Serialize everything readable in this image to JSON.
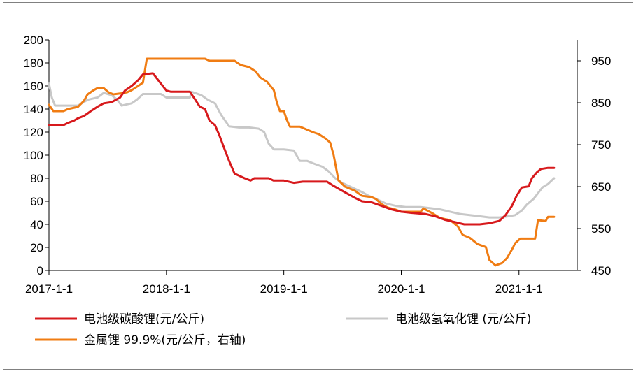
{
  "chart_data": {
    "type": "line",
    "title": "",
    "x_axis": {
      "type": "date",
      "range": [
        "2017-01-01",
        "2021-07-01"
      ],
      "tick_labels": [
        "2017-1-1",
        "2018-1-1",
        "2019-1-1",
        "2020-1-1",
        "2021-1-1"
      ]
    },
    "y_left": {
      "range": [
        0,
        200
      ],
      "ticks": [
        0,
        20,
        40,
        60,
        80,
        100,
        120,
        140,
        160,
        180,
        200
      ]
    },
    "y_right": {
      "range": [
        450,
        1000
      ],
      "ticks": [
        450,
        550,
        650,
        750,
        850,
        950
      ]
    },
    "series": [
      {
        "name": "电池级碳酸锂(元/公斤)",
        "axis": "left",
        "color": "#d7191c",
        "points": [
          [
            "2017-01-01",
            126
          ],
          [
            "2017-02-15",
            126
          ],
          [
            "2017-03-01",
            128
          ],
          [
            "2017-03-20",
            130
          ],
          [
            "2017-04-01",
            132
          ],
          [
            "2017-04-20",
            134
          ],
          [
            "2017-05-10",
            138
          ],
          [
            "2017-06-01",
            142
          ],
          [
            "2017-06-20",
            145
          ],
          [
            "2017-07-15",
            146
          ],
          [
            "2017-08-10",
            150
          ],
          [
            "2017-08-25",
            156
          ],
          [
            "2017-09-15",
            160
          ],
          [
            "2017-10-05",
            165
          ],
          [
            "2017-10-20",
            170
          ],
          [
            "2017-11-20",
            171
          ],
          [
            "2017-12-15",
            162
          ],
          [
            "2018-01-01",
            156
          ],
          [
            "2018-01-15",
            155
          ],
          [
            "2018-03-15",
            155
          ],
          [
            "2018-04-01",
            148
          ],
          [
            "2018-04-15",
            142
          ],
          [
            "2018-05-01",
            140
          ],
          [
            "2018-05-15",
            130
          ],
          [
            "2018-06-01",
            126
          ],
          [
            "2018-06-15",
            117
          ],
          [
            "2018-07-01",
            105
          ],
          [
            "2018-07-15",
            95
          ],
          [
            "2018-08-01",
            84
          ],
          [
            "2018-09-01",
            80
          ],
          [
            "2018-09-20",
            78
          ],
          [
            "2018-10-01",
            80
          ],
          [
            "2018-11-15",
            80
          ],
          [
            "2018-11-30",
            78
          ],
          [
            "2019-01-01",
            78
          ],
          [
            "2019-02-01",
            76
          ],
          [
            "2019-03-01",
            77
          ],
          [
            "2019-04-01",
            77
          ],
          [
            "2019-05-15",
            77
          ],
          [
            "2019-06-01",
            74
          ],
          [
            "2019-06-20",
            71
          ],
          [
            "2019-07-15",
            67
          ],
          [
            "2019-08-10",
            63
          ],
          [
            "2019-09-01",
            60
          ],
          [
            "2019-10-01",
            59
          ],
          [
            "2019-11-01",
            56
          ],
          [
            "2019-12-01",
            53
          ],
          [
            "2020-01-01",
            51
          ],
          [
            "2020-02-01",
            50
          ],
          [
            "2020-03-15",
            49
          ],
          [
            "2020-04-15",
            47
          ],
          [
            "2020-05-15",
            44
          ],
          [
            "2020-06-15",
            42
          ],
          [
            "2020-07-15",
            40
          ],
          [
            "2020-09-01",
            40
          ],
          [
            "2020-10-01",
            41
          ],
          [
            "2020-11-01",
            43
          ],
          [
            "2020-11-20",
            48
          ],
          [
            "2020-12-10",
            56
          ],
          [
            "2020-12-25",
            65
          ],
          [
            "2021-01-10",
            72
          ],
          [
            "2021-01-31",
            73
          ],
          [
            "2021-02-10",
            80
          ],
          [
            "2021-02-25",
            85
          ],
          [
            "2021-03-10",
            88
          ],
          [
            "2021-04-01",
            89
          ],
          [
            "2021-04-20",
            89
          ]
        ]
      },
      {
        "name": "电池级氢氧化锂 (元/公斤)",
        "axis": "left",
        "color": "#c8c8c8",
        "points": [
          [
            "2017-01-01",
            162
          ],
          [
            "2017-01-10",
            150
          ],
          [
            "2017-01-20",
            143
          ],
          [
            "2017-04-01",
            143
          ],
          [
            "2017-05-01",
            148
          ],
          [
            "2017-06-01",
            150
          ],
          [
            "2017-06-20",
            154
          ],
          [
            "2017-07-15",
            152
          ],
          [
            "2017-08-01",
            148
          ],
          [
            "2017-08-15",
            143
          ],
          [
            "2017-09-15",
            145
          ],
          [
            "2017-10-01",
            148
          ],
          [
            "2017-10-20",
            153
          ],
          [
            "2017-12-15",
            153
          ],
          [
            "2018-01-01",
            150
          ],
          [
            "2018-03-15",
            150
          ],
          [
            "2018-03-20",
            155
          ],
          [
            "2018-04-20",
            152
          ],
          [
            "2018-05-10",
            148
          ],
          [
            "2018-06-01",
            145
          ],
          [
            "2018-06-20",
            135
          ],
          [
            "2018-07-15",
            125
          ],
          [
            "2018-08-15",
            124
          ],
          [
            "2018-09-15",
            124
          ],
          [
            "2018-10-15",
            123
          ],
          [
            "2018-11-01",
            120
          ],
          [
            "2018-11-15",
            110
          ],
          [
            "2018-12-01",
            105
          ],
          [
            "2019-01-01",
            105
          ],
          [
            "2019-02-01",
            104
          ],
          [
            "2019-02-20",
            95
          ],
          [
            "2019-03-15",
            95
          ],
          [
            "2019-04-01",
            93
          ],
          [
            "2019-05-01",
            90
          ],
          [
            "2019-05-20",
            86
          ],
          [
            "2019-06-10",
            80
          ],
          [
            "2019-07-01",
            76
          ],
          [
            "2019-08-01",
            72
          ],
          [
            "2019-09-01",
            68
          ],
          [
            "2019-09-20",
            65
          ],
          [
            "2019-10-15",
            62
          ],
          [
            "2019-11-15",
            58
          ],
          [
            "2019-12-15",
            56
          ],
          [
            "2020-01-15",
            55
          ],
          [
            "2020-03-01",
            55
          ],
          [
            "2020-04-01",
            54
          ],
          [
            "2020-05-01",
            53
          ],
          [
            "2020-06-01",
            51
          ],
          [
            "2020-07-01",
            49
          ],
          [
            "2020-08-01",
            48
          ],
          [
            "2020-09-01",
            47
          ],
          [
            "2020-10-01",
            46
          ],
          [
            "2020-11-01",
            46
          ],
          [
            "2020-12-01",
            47
          ],
          [
            "2020-12-20",
            48
          ],
          [
            "2021-01-10",
            52
          ],
          [
            "2021-01-25",
            57
          ],
          [
            "2021-02-15",
            62
          ],
          [
            "2021-03-01",
            67
          ],
          [
            "2021-03-15",
            72
          ],
          [
            "2021-04-01",
            75
          ],
          [
            "2021-04-20",
            80
          ]
        ]
      },
      {
        "name": "金属锂 99.9%(元/公斤，右轴)",
        "axis": "right",
        "color": "#f07c13",
        "points": [
          [
            "2017-01-01",
            845
          ],
          [
            "2017-01-15",
            830
          ],
          [
            "2017-02-15",
            830
          ],
          [
            "2017-03-01",
            835
          ],
          [
            "2017-04-01",
            840
          ],
          [
            "2017-04-20",
            855
          ],
          [
            "2017-05-01",
            870
          ],
          [
            "2017-05-20",
            880
          ],
          [
            "2017-06-01",
            885
          ],
          [
            "2017-06-20",
            885
          ],
          [
            "2017-07-05",
            875
          ],
          [
            "2017-07-20",
            870
          ],
          [
            "2017-08-10",
            872
          ],
          [
            "2017-09-01",
            875
          ],
          [
            "2017-09-15",
            880
          ],
          [
            "2017-10-01",
            888
          ],
          [
            "2017-10-20",
            898
          ],
          [
            "2017-11-01",
            955
          ],
          [
            "2018-05-01",
            955
          ],
          [
            "2018-05-15",
            950
          ],
          [
            "2018-08-01",
            950
          ],
          [
            "2018-08-20",
            940
          ],
          [
            "2018-09-15",
            935
          ],
          [
            "2018-10-05",
            925
          ],
          [
            "2018-10-20",
            910
          ],
          [
            "2018-11-10",
            900
          ],
          [
            "2018-12-01",
            880
          ],
          [
            "2018-12-10",
            852
          ],
          [
            "2018-12-20",
            830
          ],
          [
            "2019-01-01",
            830
          ],
          [
            "2019-01-10",
            810
          ],
          [
            "2019-01-20",
            793
          ],
          [
            "2019-02-20",
            793
          ],
          [
            "2019-03-10",
            787
          ],
          [
            "2019-04-01",
            780
          ],
          [
            "2019-04-20",
            775
          ],
          [
            "2019-05-10",
            765
          ],
          [
            "2019-05-25",
            755
          ],
          [
            "2019-06-05",
            725
          ],
          [
            "2019-06-20",
            665
          ],
          [
            "2019-07-10",
            650
          ],
          [
            "2019-08-10",
            640
          ],
          [
            "2019-09-01",
            628
          ],
          [
            "2019-10-01",
            625
          ],
          [
            "2019-10-15",
            620
          ],
          [
            "2019-11-01",
            608
          ],
          [
            "2019-11-20",
            600
          ],
          [
            "2019-12-15",
            595
          ],
          [
            "2020-01-01",
            590
          ],
          [
            "2020-03-01",
            590
          ],
          [
            "2020-03-10",
            598
          ],
          [
            "2020-04-10",
            585
          ],
          [
            "2020-05-01",
            575
          ],
          [
            "2020-06-01",
            570
          ],
          [
            "2020-06-25",
            555
          ],
          [
            "2020-07-10",
            535
          ],
          [
            "2020-08-01",
            528
          ],
          [
            "2020-08-25",
            513
          ],
          [
            "2020-09-20",
            506
          ],
          [
            "2020-10-01",
            475
          ],
          [
            "2020-10-20",
            462
          ],
          [
            "2020-11-10",
            468
          ],
          [
            "2020-11-25",
            480
          ],
          [
            "2020-12-10",
            500
          ],
          [
            "2020-12-20",
            515
          ],
          [
            "2021-01-05",
            526
          ],
          [
            "2021-02-20",
            526
          ],
          [
            "2021-03-01",
            570
          ],
          [
            "2021-03-25",
            568
          ],
          [
            "2021-04-01",
            578
          ],
          [
            "2021-04-20",
            578
          ]
        ]
      }
    ],
    "legend": [
      {
        "label": "电池级碳酸锂(元/公斤)",
        "color": "#d7191c"
      },
      {
        "label": "电池级氢氧化锂 (元/公斤)",
        "color": "#c8c8c8"
      },
      {
        "label": "金属锂 99.9%(元/公斤，右轴)",
        "color": "#f07c13"
      }
    ],
    "legend_position": "bottom"
  }
}
